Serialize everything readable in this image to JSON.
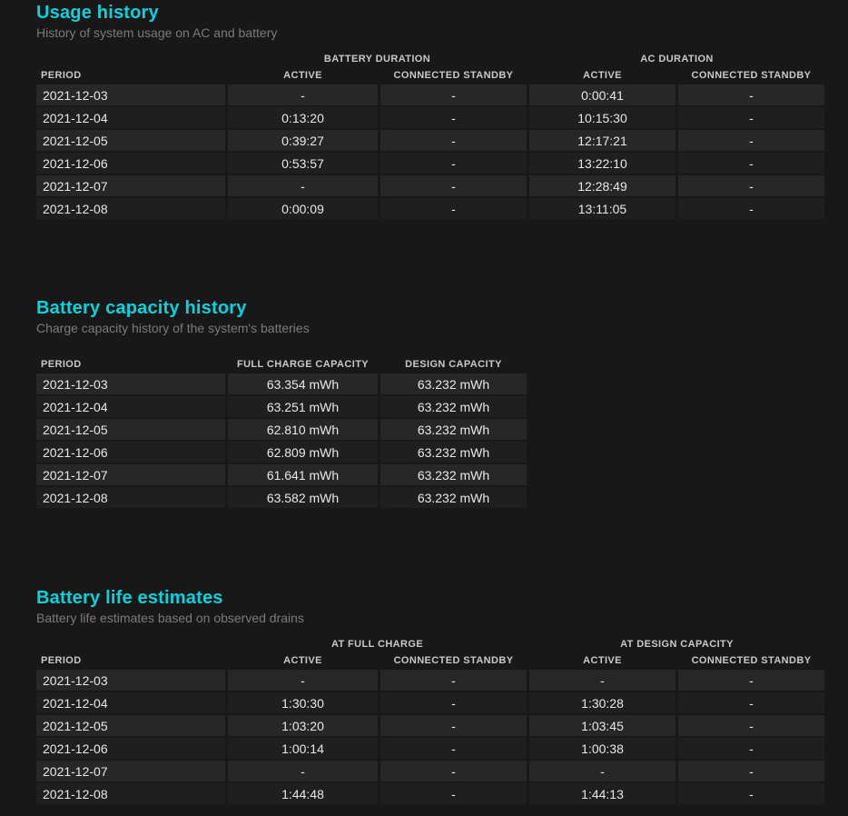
{
  "theme": {
    "page_background": "#181818",
    "title_accent": "#0cd2dc",
    "subtitle_color": "#7b7b7b",
    "header_text_color": "#c9c9c9",
    "cell_text_color": "#e8e8e8",
    "row_odd_background": "#272727",
    "row_even_background": "#1f1f1f"
  },
  "sections": [
    {
      "id": "usage-history",
      "title": "Usage history",
      "subtitle": "History of system usage on AC and battery",
      "group_headers": [
        {
          "label": "BATTERY DURATION",
          "span": 2
        },
        {
          "label": "AC DURATION",
          "span": 2
        }
      ],
      "columns": [
        "PERIOD",
        "ACTIVE",
        "CONNECTED STANDBY",
        "ACTIVE",
        "CONNECTED STANDBY"
      ],
      "rows": [
        [
          "2021-12-03",
          "-",
          "-",
          "0:00:41",
          "-"
        ],
        [
          "2021-12-04",
          "0:13:20",
          "-",
          "10:15:30",
          "-"
        ],
        [
          "2021-12-05",
          "0:39:27",
          "-",
          "12:17:21",
          "-"
        ],
        [
          "2021-12-06",
          "0:53:57",
          "-",
          "13:22:10",
          "-"
        ],
        [
          "2021-12-07",
          "-",
          "-",
          "12:28:49",
          "-"
        ],
        [
          "2021-12-08",
          "0:00:09",
          "-",
          "13:11:05",
          "-"
        ]
      ]
    },
    {
      "id": "battery-capacity-history",
      "title": "Battery capacity history",
      "subtitle": "Charge capacity history of the system's batteries",
      "columns": [
        "PERIOD",
        "FULL CHARGE CAPACITY",
        "DESIGN CAPACITY"
      ],
      "rows": [
        [
          "2021-12-03",
          "63.354 mWh",
          "63.232 mWh"
        ],
        [
          "2021-12-04",
          "63.251 mWh",
          "63.232 mWh"
        ],
        [
          "2021-12-05",
          "62.810 mWh",
          "63.232 mWh"
        ],
        [
          "2021-12-06",
          "62.809 mWh",
          "63.232 mWh"
        ],
        [
          "2021-12-07",
          "61.641 mWh",
          "63.232 mWh"
        ],
        [
          "2021-12-08",
          "63.582 mWh",
          "63.232 mWh"
        ]
      ]
    },
    {
      "id": "battery-life-estimates",
      "title": "Battery life estimates",
      "subtitle": "Battery life estimates based on observed drains",
      "group_headers": [
        {
          "label": "AT FULL CHARGE",
          "span": 2
        },
        {
          "label": "AT DESIGN CAPACITY",
          "span": 2
        }
      ],
      "columns": [
        "PERIOD",
        "ACTIVE",
        "CONNECTED STANDBY",
        "ACTIVE",
        "CONNECTED STANDBY"
      ],
      "rows": [
        [
          "2021-12-03",
          "-",
          "-",
          "-",
          "-"
        ],
        [
          "2021-12-04",
          "1:30:30",
          "-",
          "1:30:28",
          "-"
        ],
        [
          "2021-12-05",
          "1:03:20",
          "-",
          "1:03:45",
          "-"
        ],
        [
          "2021-12-06",
          "1:00:14",
          "-",
          "1:00:38",
          "-"
        ],
        [
          "2021-12-07",
          "-",
          "-",
          "-",
          "-"
        ],
        [
          "2021-12-08",
          "1:44:48",
          "-",
          "1:44:13",
          "-"
        ]
      ]
    }
  ]
}
